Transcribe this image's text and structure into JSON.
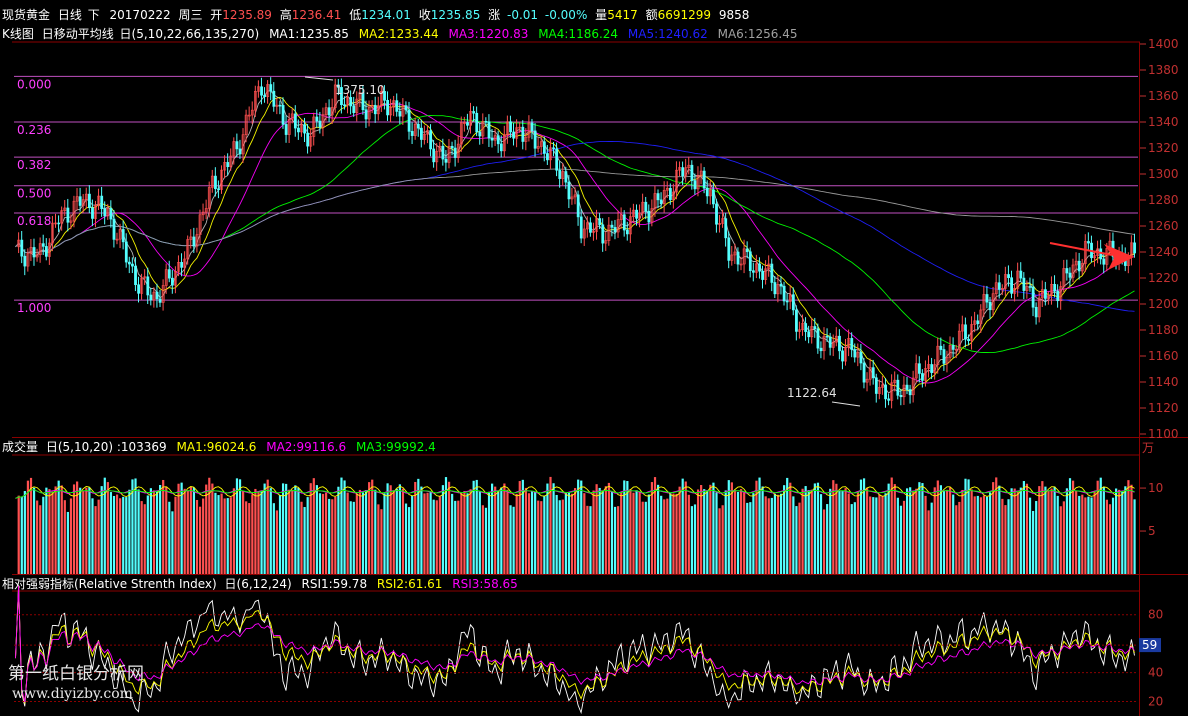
{
  "header": {
    "name": "现货黄金",
    "period": "日线",
    "mode": "下",
    "date": "20170222",
    "weekday": "周三",
    "open_label": "开",
    "open": "1235.89",
    "high_label": "高",
    "high": "1236.41",
    "low_label": "低",
    "low": "1234.01",
    "close_label": "收",
    "close": "1235.85",
    "change_label": "涨",
    "change": "-0.01",
    "change_pct": "-0.00%",
    "volume_label": "量",
    "volume": "5417",
    "amount_label": "额",
    "amount": "6691299",
    "extra": "9858"
  },
  "ma_panel": {
    "title": "K线图",
    "indicator": "日移动平均线",
    "params": "日(5,10,22,66,135,270)",
    "ma": [
      {
        "label": "MA1:1235.85",
        "color": "#ffffff"
      },
      {
        "label": "MA2:1233.44",
        "color": "#ffff00"
      },
      {
        "label": "MA3:1220.83",
        "color": "#ff00ff"
      },
      {
        "label": "MA4:1186.24",
        "color": "#00ff00"
      },
      {
        "label": "MA5:1240.62",
        "color": "#2020ff"
      },
      {
        "label": "MA6:1256.45",
        "color": "#a0a0a0"
      }
    ]
  },
  "price_axis": {
    "ticks": [
      "1400",
      "1380",
      "1360",
      "1340",
      "1320",
      "1300",
      "1280",
      "1260",
      "1240",
      "1220",
      "1200",
      "1180",
      "1160",
      "1140",
      "1120",
      "1100"
    ],
    "range": [
      1100,
      1400
    ]
  },
  "fib_levels": [
    {
      "label": "0.000",
      "price": 1375.1
    },
    {
      "label": "0.236",
      "price": 1340.0
    },
    {
      "label": "0.382",
      "price": 1313.0
    },
    {
      "label": "0.500",
      "price": 1291.0
    },
    {
      "label": "0.618",
      "price": 1270.0
    },
    {
      "label": "1.000",
      "price": 1203.0
    }
  ],
  "annotations": {
    "high": "1375.10",
    "low": "1122.64"
  },
  "volume_panel": {
    "title": "成交量",
    "params": "日(5,10,20)",
    "value": ":103369",
    "ma": [
      {
        "label": "MA1:96024.6",
        "color": "#ffff00"
      },
      {
        "label": "MA2:99116.6",
        "color": "#ff00ff"
      },
      {
        "label": "MA3:99992.4",
        "color": "#00ff00"
      }
    ],
    "unit": "万",
    "ticks": [
      "10",
      "5"
    ]
  },
  "rsi_panel": {
    "title": "相对强弱指标(Relative Strenth Index)",
    "params": "日(6,12,24)",
    "rsi": [
      {
        "label": "RSI1:59.78",
        "color": "#ffffff"
      },
      {
        "label": "RSI2:61.61",
        "color": "#ffff00"
      },
      {
        "label": "RSI3:58.65",
        "color": "#ff00ff"
      }
    ],
    "ticks": [
      "80",
      "59",
      "40",
      "20"
    ],
    "current": "59"
  },
  "watermark": {
    "line1": "第一纸白银分析网",
    "line2": "www.diyizby.com"
  },
  "colors": {
    "up": "#ff5050",
    "down": "#54ffff",
    "grid": "#8b0000",
    "fib": "#c050c0",
    "arrow": "#ff3030"
  }
}
